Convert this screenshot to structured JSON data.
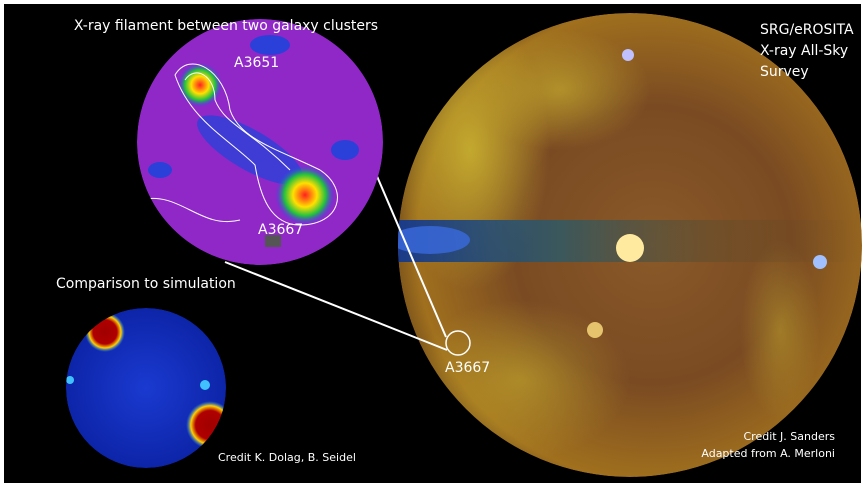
{
  "title": "X-ray filament between two galaxy clusters",
  "survey_label": [
    "SRG/eROSITA",
    "X-ray All-Sky",
    "Survey"
  ],
  "inset": {
    "labels": [
      "A3651",
      "A3667"
    ]
  },
  "simulation": {
    "title": "Comparison to simulation",
    "credit": "Credit K. Dolag, B. Seidel"
  },
  "map": {
    "marker": "A3667",
    "credit": [
      "Credit J. Sanders",
      "Adapted from A. Merloni"
    ]
  }
}
